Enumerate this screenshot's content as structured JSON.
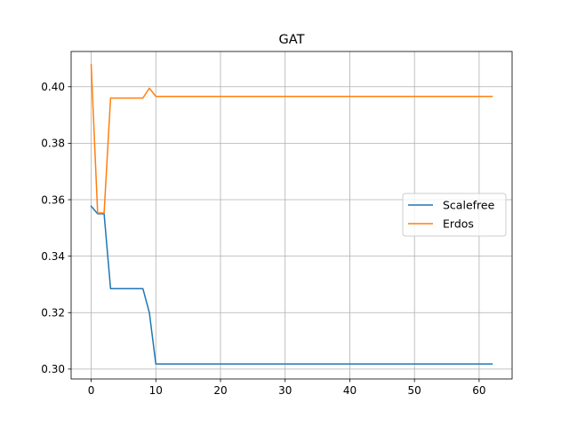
{
  "chart_data": {
    "type": "line",
    "title": "GAT",
    "xlabel": "",
    "ylabel": "",
    "xlim": [
      -3.1,
      65.1
    ],
    "ylim": [
      0.2965,
      0.4125
    ],
    "xticks": [
      0,
      10,
      20,
      30,
      40,
      50,
      60
    ],
    "yticks": [
      0.3,
      0.32,
      0.34,
      0.36,
      0.38,
      0.4
    ],
    "xtick_labels": [
      "0",
      "10",
      "20",
      "30",
      "40",
      "50",
      "60"
    ],
    "ytick_labels": [
      "0.30",
      "0.32",
      "0.34",
      "0.36",
      "0.38",
      "0.40"
    ],
    "grid": true,
    "legend_position": "center-right",
    "series": [
      {
        "name": "Scalefree",
        "color": "#1f77b4",
        "x": [
          0,
          1,
          2,
          3,
          4,
          5,
          6,
          7,
          8,
          9,
          10,
          62
        ],
        "y": [
          0.3577,
          0.355,
          0.355,
          0.3285,
          0.3285,
          0.3285,
          0.3285,
          0.3285,
          0.3285,
          0.32,
          0.3018,
          0.3018
        ]
      },
      {
        "name": "Erdos",
        "color": "#ff7f0e",
        "x": [
          0,
          1,
          2,
          3,
          4,
          5,
          6,
          7,
          8,
          9,
          10,
          62
        ],
        "y": [
          0.4078,
          0.3553,
          0.3553,
          0.396,
          0.396,
          0.396,
          0.396,
          0.396,
          0.396,
          0.3995,
          0.3966,
          0.3966
        ]
      }
    ]
  }
}
